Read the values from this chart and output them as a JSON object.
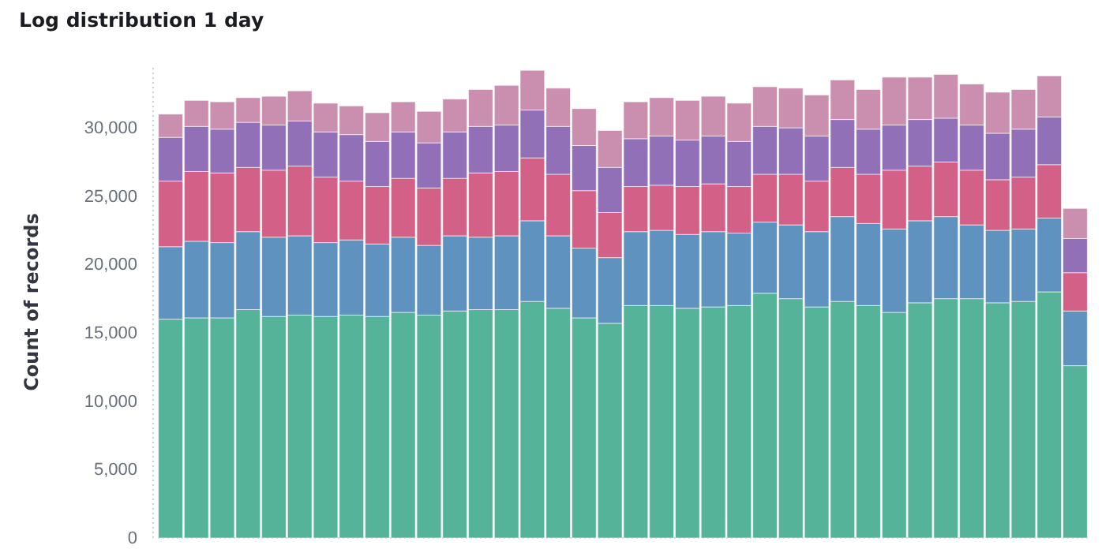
{
  "chart_data": {
    "type": "bar",
    "title": "Log distribution 1 day",
    "ylabel": "Count of records",
    "stacked": true,
    "grid": false,
    "tick_labels": "y",
    "categories": [
      null,
      null,
      null,
      null,
      null,
      null,
      null,
      null,
      null,
      null,
      null,
      null,
      null,
      null,
      null,
      null,
      null,
      null,
      null,
      null,
      null,
      null,
      null,
      null,
      null,
      null,
      null,
      null,
      null,
      null,
      null,
      null,
      null,
      null,
      null,
      null
    ],
    "ylim": [
      0,
      34500
    ],
    "yticks": [
      {
        "value": 0,
        "label": "0"
      },
      {
        "value": 5000,
        "label": "5,000"
      },
      {
        "value": 10000,
        "label": "10,000"
      },
      {
        "value": 15000,
        "label": "15,000"
      },
      {
        "value": 20000,
        "label": "20,000"
      },
      {
        "value": 25000,
        "label": "25,000"
      },
      {
        "value": 30000,
        "label": "30,000"
      }
    ],
    "series": [
      {
        "color": "#54b399",
        "values": [
          16000,
          16100,
          16100,
          16700,
          16200,
          16300,
          16200,
          16300,
          16200,
          16500,
          16300,
          16600,
          16700,
          16700,
          17300,
          16800,
          16100,
          15700,
          17000,
          17000,
          16800,
          16900,
          17000,
          17900,
          17500,
          16900,
          17300,
          17000,
          16500,
          17200,
          17500,
          17500,
          17200,
          17300,
          18000,
          12600
        ]
      },
      {
        "color": "#6092c0",
        "values": [
          5300,
          5600,
          5500,
          5700,
          5800,
          5800,
          5400,
          5500,
          5300,
          5500,
          5100,
          5500,
          5300,
          5400,
          5900,
          5300,
          5100,
          4800,
          5400,
          5500,
          5400,
          5500,
          5300,
          5200,
          5400,
          5500,
          6200,
          6000,
          6100,
          6000,
          6000,
          5400,
          5300,
          5300,
          5400,
          4000
        ]
      },
      {
        "color": "#d36086",
        "values": [
          4800,
          5100,
          5100,
          4700,
          4900,
          5100,
          4800,
          4300,
          4200,
          4300,
          4200,
          4200,
          4700,
          4700,
          4600,
          4500,
          4200,
          3300,
          3300,
          3300,
          3500,
          3500,
          3400,
          3500,
          3700,
          3700,
          3600,
          3600,
          4300,
          4000,
          4000,
          4000,
          3700,
          3800,
          3900,
          2800
        ]
      },
      {
        "color": "#9170b8",
        "values": [
          3200,
          3300,
          3200,
          3300,
          3300,
          3300,
          3300,
          3400,
          3300,
          3400,
          3300,
          3400,
          3400,
          3400,
          3500,
          3500,
          3300,
          3300,
          3500,
          3600,
          3400,
          3500,
          3300,
          3500,
          3400,
          3300,
          3500,
          3300,
          3300,
          3400,
          3200,
          3300,
          3400,
          3500,
          3500,
          2500
        ]
      },
      {
        "color": "#ca8eae",
        "values": [
          1700,
          1900,
          2000,
          1800,
          2100,
          2200,
          2100,
          2100,
          2100,
          2200,
          2300,
          2400,
          2700,
          2900,
          2900,
          2800,
          2700,
          2700,
          2700,
          2800,
          2900,
          2900,
          2800,
          2900,
          2900,
          3000,
          2900,
          2900,
          3500,
          3100,
          3200,
          3000,
          3000,
          2900,
          3000,
          2200
        ]
      }
    ]
  }
}
